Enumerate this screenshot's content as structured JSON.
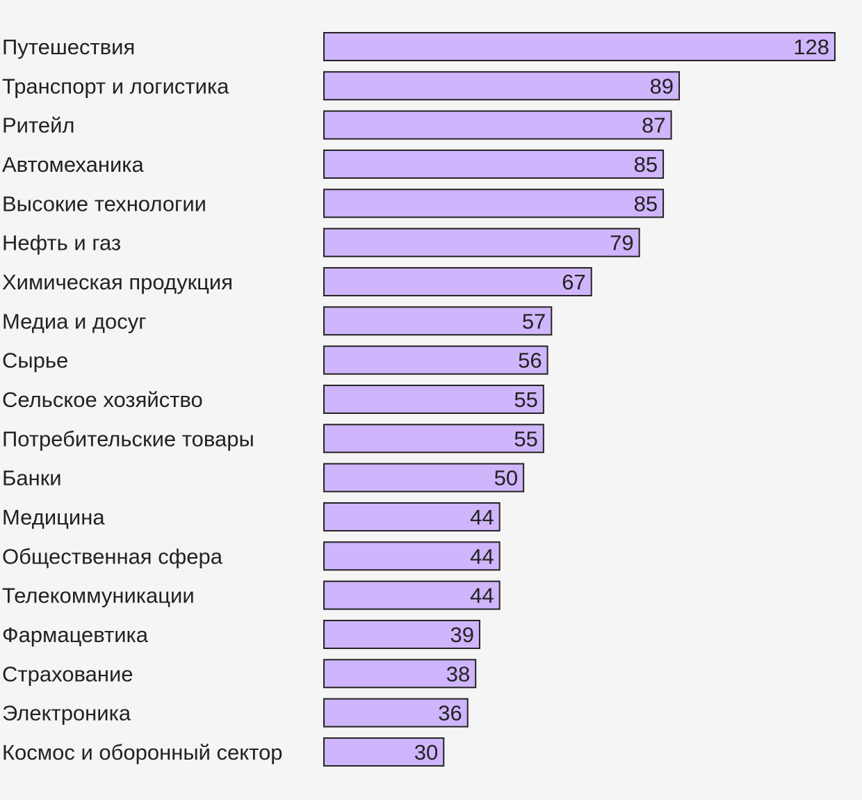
{
  "chart_data": {
    "type": "bar",
    "orientation": "horizontal",
    "categories": [
      "Путешествия",
      "Транспорт и логистика",
      "Ритейл",
      "Автомеханика",
      "Высокие технологии",
      "Нефть и газ",
      "Химическая продукция",
      "Медиа и досуг",
      "Сырье",
      "Сельское хозяйство",
      "Потребительские товары",
      "Банки",
      "Медицина",
      "Общественная сфера",
      "Телекоммуникации",
      "Фармацевтика",
      "Страхование",
      "Электроника",
      "Космос и оборонный сектор"
    ],
    "values": [
      128,
      89,
      87,
      85,
      85,
      79,
      67,
      57,
      56,
      55,
      55,
      50,
      44,
      44,
      44,
      39,
      38,
      36,
      30
    ],
    "xlim": [
      0,
      128
    ],
    "grid": false,
    "data_labels": true,
    "colors": {
      "bar": "#cfb5fb",
      "border": "#222222",
      "background": "#f5f5f5"
    }
  }
}
